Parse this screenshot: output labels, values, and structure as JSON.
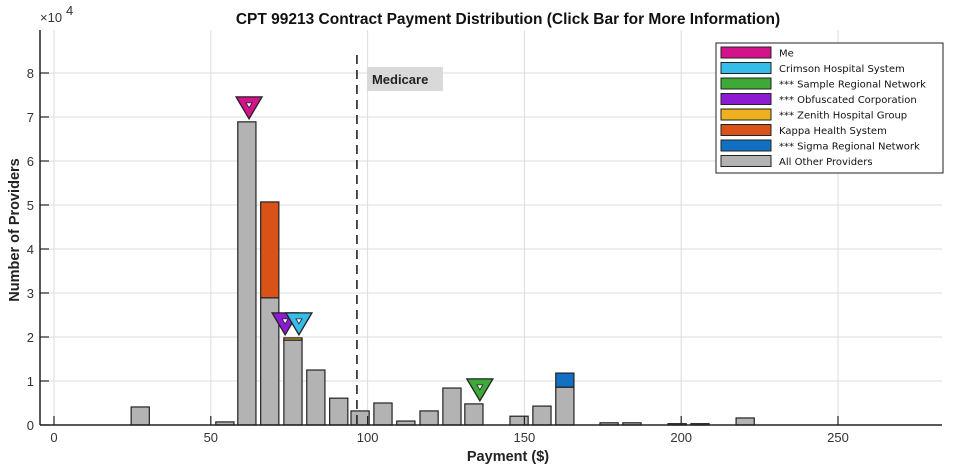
{
  "chart_data": {
    "type": "bar",
    "stacked": true,
    "title": "CPT 99213 Contract Payment Distribution (Click Bar for More Information)",
    "xlabel": "Payment ($)",
    "ylabel": "Number of Providers",
    "y_exponent_label": "×10",
    "y_exponent": "4",
    "xlim": [
      -4,
      283
    ],
    "ylim": [
      0,
      8.9
    ],
    "xticks": [
      0,
      50,
      100,
      150,
      200,
      250
    ],
    "yticks": [
      0,
      1,
      2,
      3,
      4,
      5,
      6,
      7,
      8
    ],
    "grid": true,
    "legend_position": "upper right",
    "bin_width": 5.8,
    "bars": [
      {
        "x": 27.5,
        "segments": {
          "All Other Providers": 0.41
        }
      },
      {
        "x": 54.5,
        "segments": {
          "All Other Providers": 0.07
        }
      },
      {
        "x": 61.5,
        "segments": {
          "All Other Providers": 6.89
        }
      },
      {
        "x": 68.8,
        "segments": {
          "All Other Providers": 2.89,
          "Kappa Health System": 2.18
        }
      },
      {
        "x": 76.2,
        "segments": {
          "All Other Providers": 1.93,
          "*** Zenith Hospital Group": 0.05
        }
      },
      {
        "x": 83.5,
        "segments": {
          "All Other Providers": 1.25
        }
      },
      {
        "x": 90.8,
        "segments": {
          "All Other Providers": 0.61
        }
      },
      {
        "x": 97.6,
        "segments": {
          "All Other Providers": 0.32
        }
      },
      {
        "x": 104.9,
        "segments": {
          "All Other Providers": 0.5
        }
      },
      {
        "x": 112.2,
        "segments": {
          "All Other Providers": 0.09
        }
      },
      {
        "x": 119.6,
        "segments": {
          "All Other Providers": 0.32
        }
      },
      {
        "x": 126.9,
        "segments": {
          "All Other Providers": 0.84
        }
      },
      {
        "x": 133.9,
        "segments": {
          "All Other Providers": 0.48
        }
      },
      {
        "x": 148.3,
        "segments": {
          "All Other Providers": 0.2
        }
      },
      {
        "x": 155.6,
        "segments": {
          "All Other Providers": 0.43
        }
      },
      {
        "x": 162.9,
        "segments": {
          "All Other Providers": 0.86,
          "*** Sigma Regional Network": 0.32
        }
      },
      {
        "x": 177.0,
        "segments": {
          "All Other Providers": 0.05
        }
      },
      {
        "x": 184.3,
        "segments": {
          "All Other Providers": 0.05
        }
      },
      {
        "x": 198.7,
        "segments": {
          "All Other Providers": 0.03
        }
      },
      {
        "x": 206.0,
        "segments": {
          "All Other Providers": 0.03
        }
      },
      {
        "x": 220.4,
        "segments": {
          "All Other Providers": 0.16
        }
      }
    ],
    "markers": [
      {
        "name": "Me",
        "x": 62.2,
        "y": 6.89
      },
      {
        "name": "*** Obfuscated Corporation",
        "x": 73.7,
        "y": 1.98
      },
      {
        "name": "Crimson Hospital System",
        "x": 78.1,
        "y": 1.98
      },
      {
        "name": "*** Sample Regional Network",
        "x": 135.8,
        "y": 0.48
      }
    ],
    "reference_lines": [
      {
        "label": "Medicare",
        "x": 96.6,
        "style": "dashed"
      }
    ],
    "legend": [
      {
        "label": "Me",
        "color": "#D4128C"
      },
      {
        "label": "Crimson Hospital System",
        "color": "#35BDEA"
      },
      {
        "label": "*** Sample Regional Network",
        "color": "#3DAA38"
      },
      {
        "label": "*** Obfuscated Corporation",
        "color": "#8E1BD4"
      },
      {
        "label": "*** Zenith Hospital Group",
        "color": "#EDB120"
      },
      {
        "label": "Kappa Health System",
        "color": "#D95319"
      },
      {
        "label": "*** Sigma Regional Network",
        "color": "#1170C2"
      },
      {
        "label": "All Other Providers",
        "color": "#B3B3B3"
      }
    ]
  }
}
